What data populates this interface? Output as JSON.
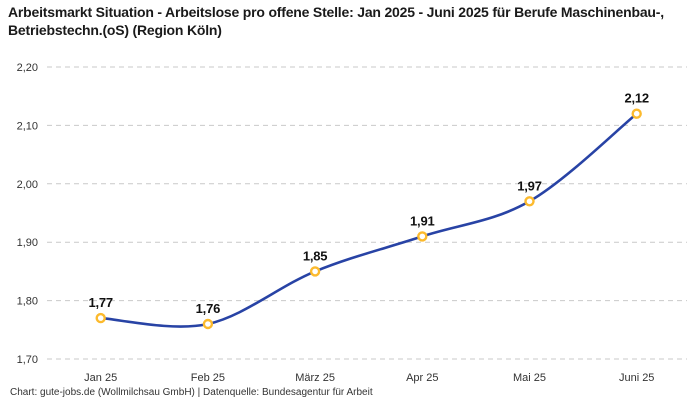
{
  "title": "Arbeitsmarkt Situation - Arbeitslose pro offene Stelle: Jan 2025 - Juni 2025 für Berufe Maschinenbau-, Betriebstechn.(oS) (Region Köln)",
  "footer": "Chart: gute-jobs.de (Wollmilchsau GmbH) | Datenquelle: Bundesagentur für Arbeit",
  "chart_data": {
    "type": "line",
    "categories": [
      "Jan 25",
      "Feb 25",
      "März 25",
      "Apr 25",
      "Mai 25",
      "Juni 25"
    ],
    "values": [
      1.77,
      1.76,
      1.85,
      1.91,
      1.97,
      2.12
    ],
    "point_labels": [
      "1,77",
      "1,76",
      "1,85",
      "1,91",
      "1,97",
      "2,12"
    ],
    "y_ticks": [
      2.2,
      2.1,
      2.0,
      1.9,
      1.8,
      1.7
    ],
    "y_tick_labels": [
      "2,20",
      "2,10",
      "2,00",
      "1,90",
      "1,80",
      "1,70"
    ],
    "ylim": [
      1.7,
      2.2
    ],
    "xlabel": "",
    "ylabel": "",
    "grid": "horizontal-dashed",
    "legend": "none",
    "colors": {
      "line": "#2843a5",
      "marker_stroke": "#fcba2d",
      "marker_fill": "#ffffff",
      "grid": "#c9c9c9",
      "tick": "#333333",
      "label": "#111111",
      "title": "#1a1a1a",
      "background": "#ffffff"
    }
  }
}
